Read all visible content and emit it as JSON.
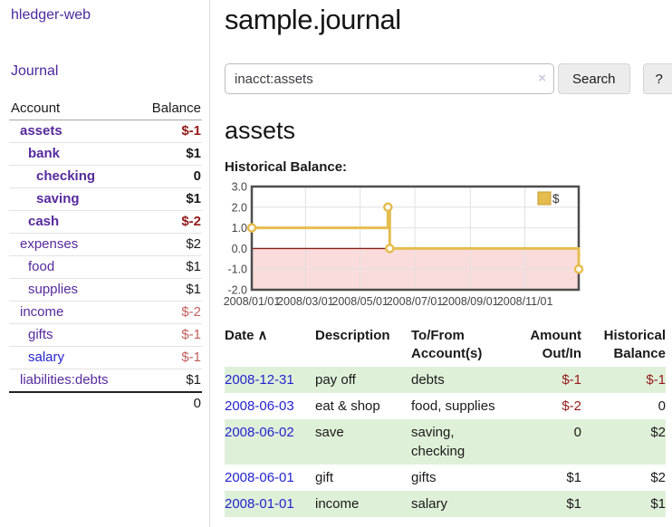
{
  "app": {
    "brand": "hledger-web",
    "nav_journal": "Journal"
  },
  "header": {
    "title": "sample.journal"
  },
  "search": {
    "value": "inacct:assets",
    "search_label": "Search",
    "help_label": "?"
  },
  "icons": {
    "clear": "×",
    "sort_ascending": "∧",
    "legend_swatch": "square"
  },
  "main": {
    "account_title": "assets",
    "chart_label": "Historical Balance:"
  },
  "sidebar": {
    "accounts_header": {
      "account": "Account",
      "balance": "Balance"
    },
    "accounts": [
      {
        "name": "assets",
        "balance": "$-1",
        "level": 0,
        "bold": true,
        "name_tone": "purple",
        "bal_tone": "negstrong"
      },
      {
        "name": "bank",
        "balance": "$1",
        "level": 1,
        "bold": true,
        "name_tone": "purple",
        "bal_tone": "plain"
      },
      {
        "name": "checking",
        "balance": "0",
        "level": 2,
        "bold": true,
        "name_tone": "purple",
        "bal_tone": "plain"
      },
      {
        "name": "saving",
        "balance": "$1",
        "level": 2,
        "bold": true,
        "name_tone": "purple",
        "bal_tone": "plain"
      },
      {
        "name": "cash",
        "balance": "$-2",
        "level": 1,
        "bold": true,
        "name_tone": "purple",
        "bal_tone": "negstrong"
      },
      {
        "name": "expenses",
        "balance": "$2",
        "level": 0,
        "bold": false,
        "name_tone": "purple",
        "bal_tone": "plain"
      },
      {
        "name": "food",
        "balance": "$1",
        "level": 1,
        "bold": false,
        "name_tone": "purple",
        "bal_tone": "plain"
      },
      {
        "name": "supplies",
        "balance": "$1",
        "level": 1,
        "bold": false,
        "name_tone": "purple",
        "bal_tone": "plain"
      },
      {
        "name": "income",
        "balance": "$-2",
        "level": 0,
        "bold": false,
        "name_tone": "purple",
        "bal_tone": "negsoft"
      },
      {
        "name": "gifts",
        "balance": "$-1",
        "level": 1,
        "bold": false,
        "name_tone": "purple",
        "bal_tone": "negsoft"
      },
      {
        "name": "salary",
        "balance": "$-1",
        "level": 1,
        "bold": false,
        "name_tone": "blue",
        "bal_tone": "negsoft"
      },
      {
        "name": "liabilities:debts",
        "balance": "$1",
        "level": 0,
        "bold": false,
        "name_tone": "purple",
        "bal_tone": "plain"
      }
    ],
    "total": "0"
  },
  "chart_data": {
    "type": "line",
    "step": true,
    "title": "Historical Balance",
    "legend": [
      "$"
    ],
    "legend_position": "top-right",
    "grid": true,
    "ylim": [
      -2.0,
      3.0
    ],
    "yticks": [
      3.0,
      2.0,
      1.0,
      0.0,
      -1.0,
      -2.0
    ],
    "xticks": [
      "2008/01/01",
      "2008/03/01",
      "2008/05/01",
      "2008/07/01",
      "2008/09/01",
      "2008/11/01"
    ],
    "series": [
      {
        "name": "$",
        "x": [
          "2008/01/01",
          "2008/06/01",
          "2008/06/03",
          "2008/12/31"
        ],
        "y": [
          1,
          2,
          0,
          -1
        ]
      }
    ],
    "colors": {
      "line": "#e5bd4f",
      "legend_border": "#c79c2e",
      "negative_fill": "#fbdcdc",
      "zero_line": "#8b1a1a",
      "grid": "#e0e0e0",
      "border": "#4d4d4d"
    }
  },
  "transactions": {
    "columns": [
      "Date",
      "Description",
      "To/From Account(s)",
      "Amount Out/In",
      "Historical Balance"
    ],
    "rows": [
      {
        "date": "2008-12-31",
        "description": "pay off",
        "accounts": "debts",
        "amount": "$-1",
        "amount_tone": "neg",
        "balance": "$-1",
        "balance_tone": "neg",
        "striped": true
      },
      {
        "date": "2008-06-03",
        "description": "eat & shop",
        "accounts": "food, supplies",
        "amount": "$-2",
        "amount_tone": "neg",
        "balance": "0",
        "balance_tone": "plain",
        "striped": false
      },
      {
        "date": "2008-06-02",
        "description": "save",
        "accounts": "saving, checking",
        "amount": "0",
        "amount_tone": "plain",
        "balance": "$2",
        "balance_tone": "plain",
        "striped": true
      },
      {
        "date": "2008-06-01",
        "description": "gift",
        "accounts": "gifts",
        "amount": "$1",
        "amount_tone": "plain",
        "balance": "$2",
        "balance_tone": "plain",
        "striped": false
      },
      {
        "date": "2008-01-01",
        "description": "income",
        "accounts": "salary",
        "amount": "$1",
        "amount_tone": "plain",
        "balance": "$1",
        "balance_tone": "plain",
        "striped": true
      }
    ]
  },
  "colors": {
    "link_purple": "#562a9c",
    "link_blue": "#2424cf",
    "negative_strong": "#941a1a",
    "negative_soft": "#c2605e",
    "row_stripe_green": "#dff0d8"
  }
}
